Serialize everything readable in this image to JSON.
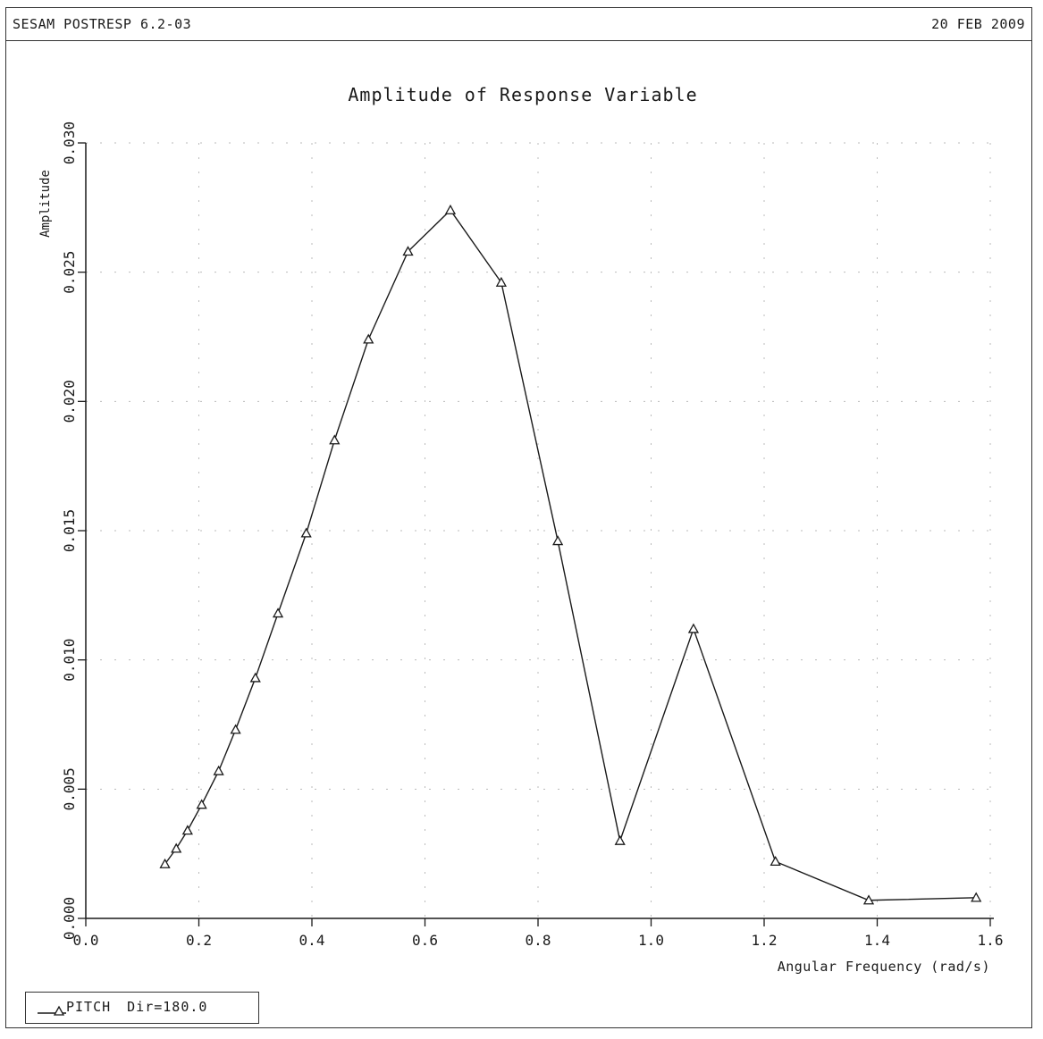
{
  "header": {
    "program": "SESAM POSTRESP 6.2-03",
    "date": "20 FEB 2009"
  },
  "legend": {
    "series_name": "PITCH",
    "direction_label": "Dir=180.0"
  },
  "chart_data": {
    "type": "line",
    "title": "Amplitude of Response Variable",
    "xlabel": "Angular Frequency (rad/s)",
    "ylabel": "Amplitude",
    "xlim": [
      0.0,
      1.6
    ],
    "ylim": [
      0.0,
      0.03
    ],
    "x_ticks": [
      "0.0",
      "0.2",
      "0.4",
      "0.6",
      "0.8",
      "1.0",
      "1.2",
      "1.4",
      "1.6"
    ],
    "y_ticks": [
      "0.000",
      "0.005",
      "0.010",
      "0.015",
      "0.020",
      "0.025",
      "0.030"
    ],
    "grid": "dotted",
    "legend_position": "bottom-left",
    "marker": "triangle",
    "series": [
      {
        "name": "PITCH",
        "x": [
          0.14,
          0.16,
          0.18,
          0.205,
          0.235,
          0.265,
          0.3,
          0.34,
          0.39,
          0.44,
          0.5,
          0.57,
          0.645,
          0.735,
          0.835,
          0.945,
          1.075,
          1.22,
          1.385,
          1.575
        ],
        "y": [
          0.0021,
          0.0027,
          0.0034,
          0.0044,
          0.0057,
          0.0073,
          0.0093,
          0.0118,
          0.0149,
          0.0185,
          0.0224,
          0.0258,
          0.0274,
          0.0246,
          0.0146,
          0.003,
          0.0112,
          0.0022,
          0.0007,
          0.0008
        ]
      }
    ]
  }
}
